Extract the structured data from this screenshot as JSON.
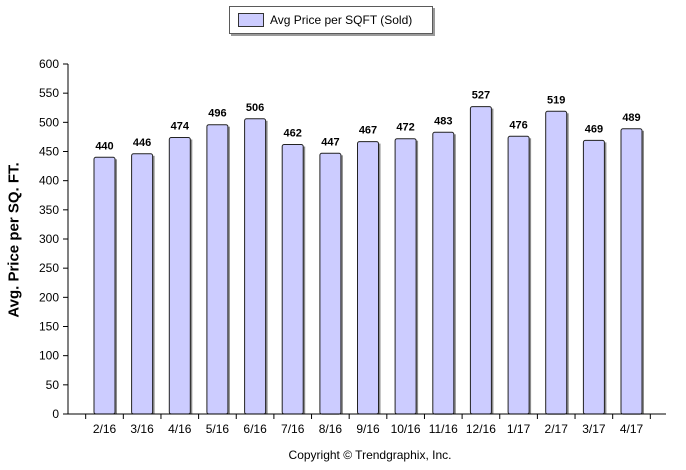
{
  "legend": {
    "label": "Avg Price per SQFT (Sold)",
    "swatch_color": "#ccccff"
  },
  "footer": {
    "copyright": "Copyright © Trendgraphix, Inc."
  },
  "chart_data": {
    "type": "bar",
    "title": "",
    "xlabel": "",
    "ylabel": "Avg. Price per SQ. FT.",
    "categories": [
      "2/16",
      "3/16",
      "4/16",
      "5/16",
      "6/16",
      "7/16",
      "8/16",
      "9/16",
      "10/16",
      "11/16",
      "12/16",
      "1/17",
      "2/17",
      "3/17",
      "4/17"
    ],
    "series": [
      {
        "name": "Avg Price per SQFT (Sold)",
        "values": [
          440,
          446,
          474,
          496,
          506,
          462,
          447,
          467,
          472,
          483,
          527,
          476,
          519,
          469,
          489
        ],
        "color": "#ccccff"
      }
    ],
    "data_labels": [
      "440",
      "446",
      "474",
      "496",
      "506",
      "462",
      "447",
      "467",
      "472",
      "483",
      "527",
      "476",
      "519",
      "469",
      "489"
    ],
    "ylim": [
      0,
      600
    ],
    "yticks": [
      0,
      50,
      100,
      150,
      200,
      250,
      300,
      350,
      400,
      450,
      500,
      550,
      600
    ],
    "ytick_labels": [
      "0",
      "50",
      "100",
      "150",
      "200",
      "250",
      "300",
      "350",
      "400",
      "450",
      "500",
      "550",
      "600"
    ],
    "grid": false,
    "legend_position": "top-center"
  }
}
